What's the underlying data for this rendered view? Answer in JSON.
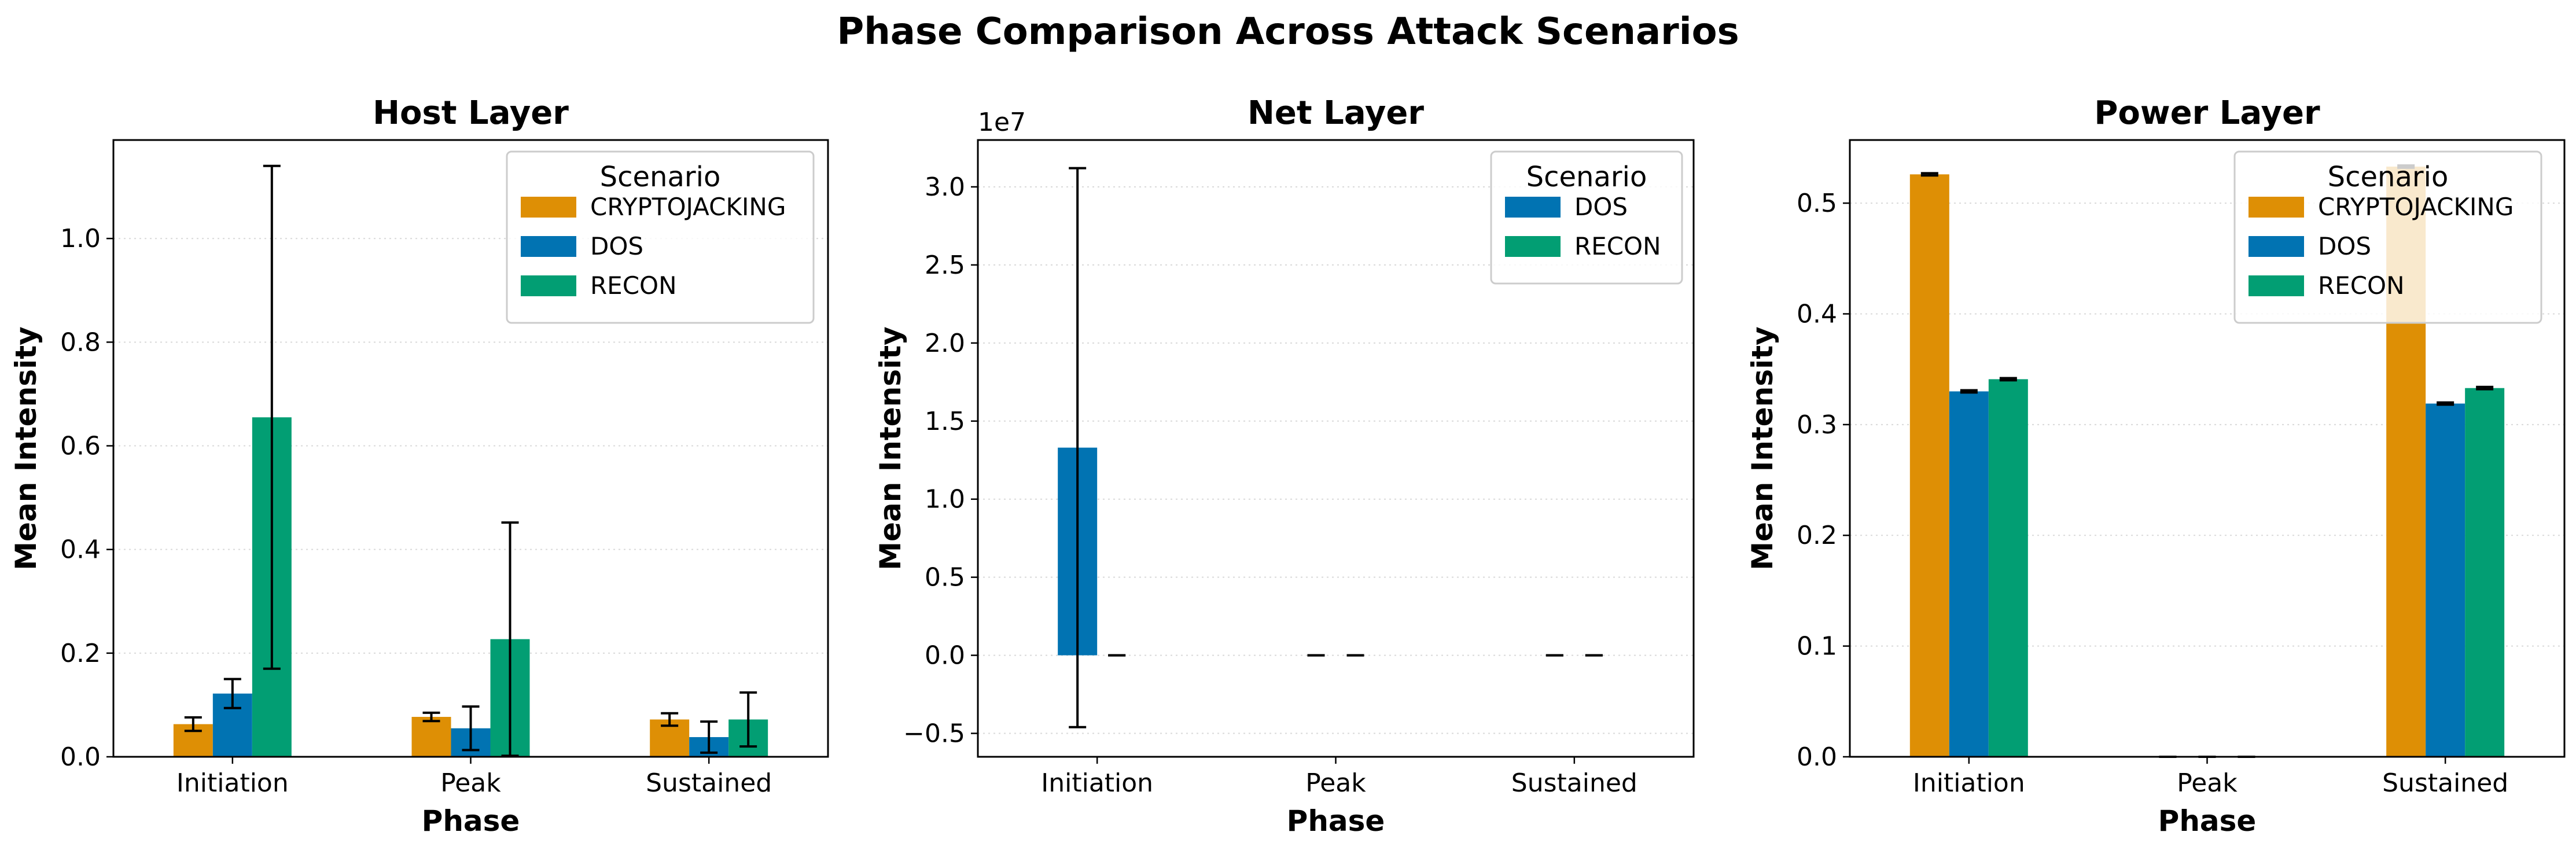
{
  "suptitle": "Phase Comparison Across Attack Scenarios",
  "colors": {
    "CRYPTOJACKING": "#de8f05",
    "DOS": "#0173b2",
    "RECON": "#029e73"
  },
  "chart_data": [
    {
      "type": "bar",
      "title": "Host Layer",
      "xlabel": "Phase",
      "ylabel": "Mean Intensity",
      "categories": [
        "Initiation",
        "Peak",
        "Sustained"
      ],
      "ylim": [
        0,
        1.19
      ],
      "yticks": [
        "0.0",
        "0.2",
        "0.4",
        "0.6",
        "0.8",
        "1.0"
      ],
      "ytick_values": [
        0,
        0.2,
        0.4,
        0.6,
        0.8,
        1.0
      ],
      "offset_text": "",
      "grid": "y-dotted",
      "legend": {
        "title": "Scenario",
        "placement": "upper right"
      },
      "series": [
        {
          "name": "CRYPTOJACKING",
          "values": [
            0.063,
            0.077,
            0.072
          ],
          "errors": [
            0.013,
            0.008,
            0.012
          ]
        },
        {
          "name": "DOS",
          "values": [
            0.122,
            0.055,
            0.038
          ],
          "errors": [
            0.028,
            0.042,
            0.03
          ]
        },
        {
          "name": "RECON",
          "values": [
            0.655,
            0.227,
            0.072
          ],
          "errors": [
            0.485,
            0.225,
            0.052
          ]
        }
      ]
    },
    {
      "type": "bar",
      "title": "Net Layer",
      "xlabel": "Phase",
      "ylabel": "Mean Intensity",
      "categories": [
        "Initiation",
        "Peak",
        "Sustained"
      ],
      "ylim": [
        -0.65,
        3.3
      ],
      "yticks": [
        "−0.5",
        "0.0",
        "0.5",
        "1.0",
        "1.5",
        "2.0",
        "2.5",
        "3.0"
      ],
      "ytick_values": [
        -0.5,
        0,
        0.5,
        1.0,
        1.5,
        2.0,
        2.5,
        3.0
      ],
      "offset_text": "1e7",
      "grid": "y-dotted",
      "legend": {
        "title": "Scenario",
        "placement": "upper right"
      },
      "series": [
        {
          "name": "DOS",
          "values": [
            1.33,
            0.0,
            0.0
          ],
          "errors": [
            1.79,
            0.0,
            0.0
          ]
        },
        {
          "name": "RECON",
          "values": [
            0.0,
            0.0,
            0.0
          ],
          "errors": [
            0.0,
            0.0,
            0.0
          ]
        }
      ]
    },
    {
      "type": "bar",
      "title": "Power Layer",
      "xlabel": "Phase",
      "ylabel": "Mean Intensity",
      "categories": [
        "Initiation",
        "Peak",
        "Sustained"
      ],
      "ylim": [
        0,
        0.557
      ],
      "yticks": [
        "0.0",
        "0.1",
        "0.2",
        "0.3",
        "0.4",
        "0.5"
      ],
      "ytick_values": [
        0,
        0.1,
        0.2,
        0.3,
        0.4,
        0.5
      ],
      "offset_text": "",
      "grid": "y-dotted",
      "legend": {
        "title": "Scenario",
        "placement": "upper right"
      },
      "series": [
        {
          "name": "CRYPTOJACKING",
          "values": [
            0.526,
            0.0,
            0.533
          ],
          "errors": [
            0.001,
            0.0,
            0.001
          ]
        },
        {
          "name": "DOS",
          "values": [
            0.33,
            0.0,
            0.319
          ],
          "errors": [
            0.001,
            0.0,
            0.001
          ]
        },
        {
          "name": "RECON",
          "values": [
            0.341,
            0.0,
            0.333
          ],
          "errors": [
            0.001,
            0.0,
            0.001
          ]
        }
      ]
    }
  ]
}
